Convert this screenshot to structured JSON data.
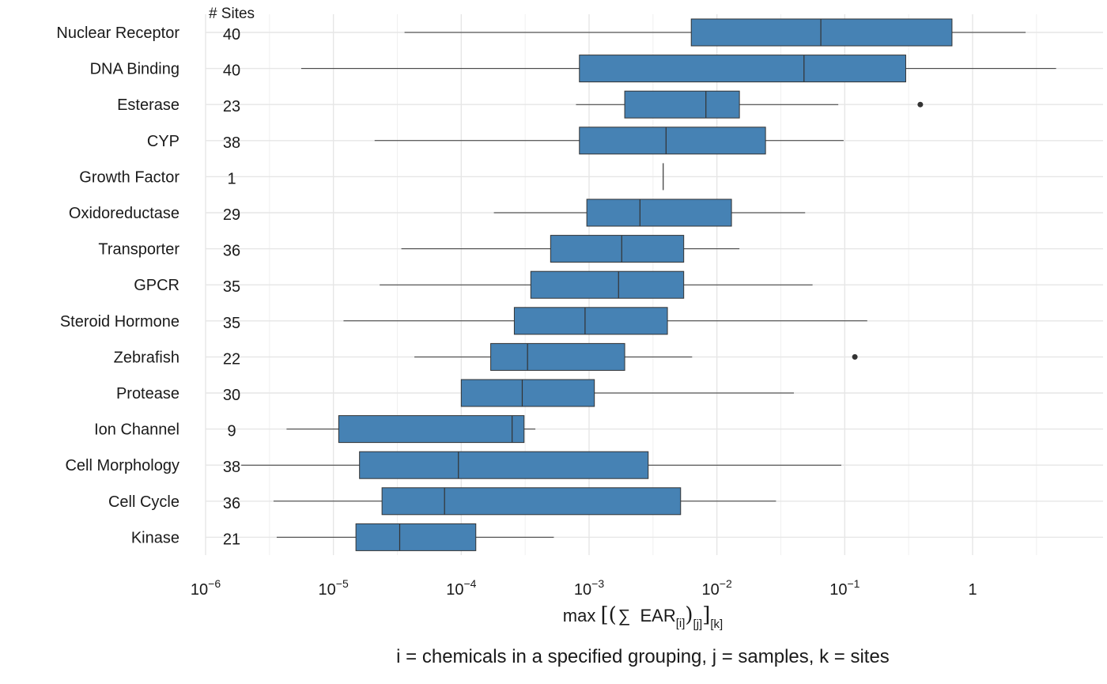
{
  "chart_data": {
    "type": "boxplot",
    "orientation": "horizontal",
    "x_scale": "log10",
    "xlim": [
      1e-06,
      5
    ],
    "xticks": [
      {
        "value": 1e-06,
        "base": "10",
        "exp": "−6"
      },
      {
        "value": 1e-05,
        "base": "10",
        "exp": "−5"
      },
      {
        "value": 0.0001,
        "base": "10",
        "exp": "−4"
      },
      {
        "value": 0.001,
        "base": "10",
        "exp": "−3"
      },
      {
        "value": 0.01,
        "base": "10",
        "exp": "−2"
      },
      {
        "value": 0.1,
        "base": "10",
        "exp": "−1"
      },
      {
        "value": 1,
        "base": "1",
        "exp": ""
      }
    ],
    "sites_header": "# Sites",
    "xlabel": {
      "prefix": "max ",
      "open_outer": "[",
      "open_inner": "(",
      "sigma": "∑",
      "ear": "EAR",
      "sub_i": "[i]",
      "close_inner": ")",
      "sub_j": "[j]",
      "close_outer": "]",
      "sub_k": "[k]"
    },
    "caption": "i = chemicals in a specified grouping, j = samples, k = sites",
    "box_color": "#4682B4",
    "categories": [
      {
        "name": "Nuclear Receptor",
        "sites": "40",
        "whisker_low": 3.6e-05,
        "q1": 0.0063,
        "median": 0.065,
        "q3": 0.69,
        "whisker_high": 2.6,
        "outliers": []
      },
      {
        "name": "DNA Binding",
        "sites": "40",
        "whisker_low": 5.6e-06,
        "q1": 0.00084,
        "median": 0.048,
        "q3": 0.3,
        "whisker_high": 4.5,
        "outliers": []
      },
      {
        "name": "Esterase",
        "sites": "23",
        "whisker_low": 0.00079,
        "q1": 0.0019,
        "median": 0.0082,
        "q3": 0.015,
        "whisker_high": 0.089,
        "outliers": [
          0.39
        ]
      },
      {
        "name": "CYP",
        "sites": "38",
        "whisker_low": 2.1e-05,
        "q1": 0.00084,
        "median": 0.004,
        "q3": 0.024,
        "whisker_high": 0.098,
        "outliers": []
      },
      {
        "name": "Growth Factor",
        "sites": "1",
        "whisker_low": 0.0038,
        "q1": 0.0038,
        "median": 0.0038,
        "q3": 0.0038,
        "whisker_high": 0.0038,
        "outliers": []
      },
      {
        "name": "Oxidoreductase",
        "sites": "29",
        "whisker_low": 0.00018,
        "q1": 0.00096,
        "median": 0.0025,
        "q3": 0.013,
        "whisker_high": 0.049,
        "outliers": []
      },
      {
        "name": "Transporter",
        "sites": "36",
        "whisker_low": 3.4e-05,
        "q1": 0.0005,
        "median": 0.0018,
        "q3": 0.0055,
        "whisker_high": 0.015,
        "outliers": []
      },
      {
        "name": "GPCR",
        "sites": "35",
        "whisker_low": 2.3e-05,
        "q1": 0.00035,
        "median": 0.0017,
        "q3": 0.0055,
        "whisker_high": 0.056,
        "outliers": []
      },
      {
        "name": "Steroid Hormone",
        "sites": "35",
        "whisker_low": 1.2e-05,
        "q1": 0.00026,
        "median": 0.00093,
        "q3": 0.0041,
        "whisker_high": 0.15,
        "outliers": []
      },
      {
        "name": "Zebrafish",
        "sites": "22",
        "whisker_low": 4.3e-05,
        "q1": 0.00017,
        "median": 0.00033,
        "q3": 0.0019,
        "whisker_high": 0.0064,
        "outliers": [
          0.12
        ]
      },
      {
        "name": "Protease",
        "sites": "30",
        "whisker_low": 0.0001,
        "q1": 0.0001,
        "median": 0.0003,
        "q3": 0.0011,
        "whisker_high": 0.04,
        "outliers": []
      },
      {
        "name": "Ion Channel",
        "sites": "9",
        "whisker_low": 4.3e-06,
        "q1": 1.1e-05,
        "median": 0.00025,
        "q3": 0.00031,
        "whisker_high": 0.00038,
        "outliers": []
      },
      {
        "name": "Cell Morphology",
        "sites": "38",
        "whisker_low": 1.9e-06,
        "q1": 1.6e-05,
        "median": 9.5e-05,
        "q3": 0.0029,
        "whisker_high": 0.094,
        "outliers": []
      },
      {
        "name": "Cell Cycle",
        "sites": "36",
        "whisker_low": 3.4e-06,
        "q1": 2.4e-05,
        "median": 7.4e-05,
        "q3": 0.0052,
        "whisker_high": 0.029,
        "outliers": []
      },
      {
        "name": "Kinase",
        "sites": "21",
        "whisker_low": 3.6e-06,
        "q1": 1.5e-05,
        "median": 3.3e-05,
        "q3": 0.00013,
        "whisker_high": 0.00053,
        "outliers": []
      }
    ]
  }
}
